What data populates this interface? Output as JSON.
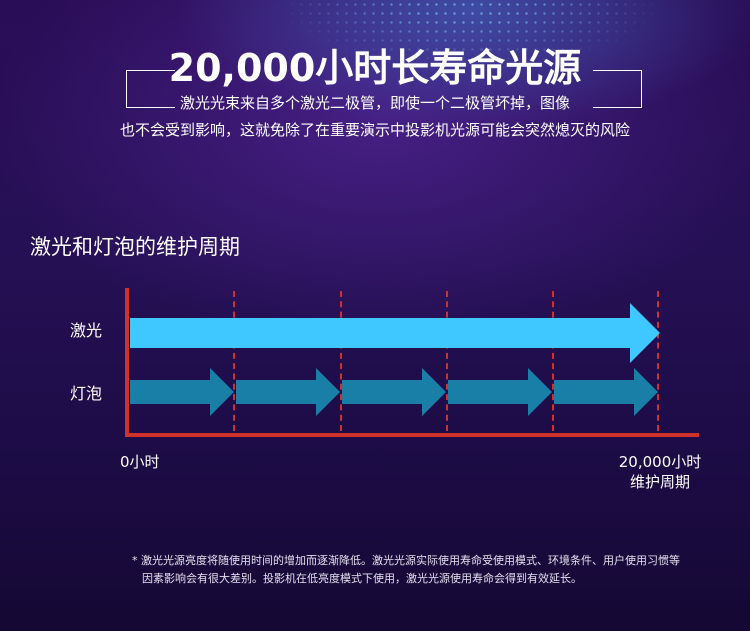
{
  "header": {
    "title": "20,000小时长寿命光源",
    "subtitle_line1": "激光光束来自多个激光二极管，即使一个二极管坏掉，图像",
    "subtitle_line2": "也不会受到影响，这就免除了在重要演示中投影机光源可能会突然熄灭的风险"
  },
  "section": {
    "title": "激光和灯泡的维护周期"
  },
  "rows": [
    {
      "label": "激光",
      "color": "#3ec8ff"
    },
    {
      "label": "灯泡",
      "color": "#1a7fa6"
    }
  ],
  "axis": {
    "start_label": "0小时",
    "end_label_line1": "20,000小时",
    "end_label_line2": "维护周期"
  },
  "colors": {
    "axis": "#d0322b",
    "laser_arrow": "#3ec8ff",
    "bulb_arrow": "#1a7fa6"
  },
  "footnote": {
    "line1": "* 激光光源亮度将随使用时间的增加而逐渐降低。激光光源实际使用寿命受使用模式、环境条件、用户使用习惯等",
    "line2": "因素影响会有很大差别。投影机在低亮度模式下使用，激光光源使用寿命会得到有效延长。"
  }
}
